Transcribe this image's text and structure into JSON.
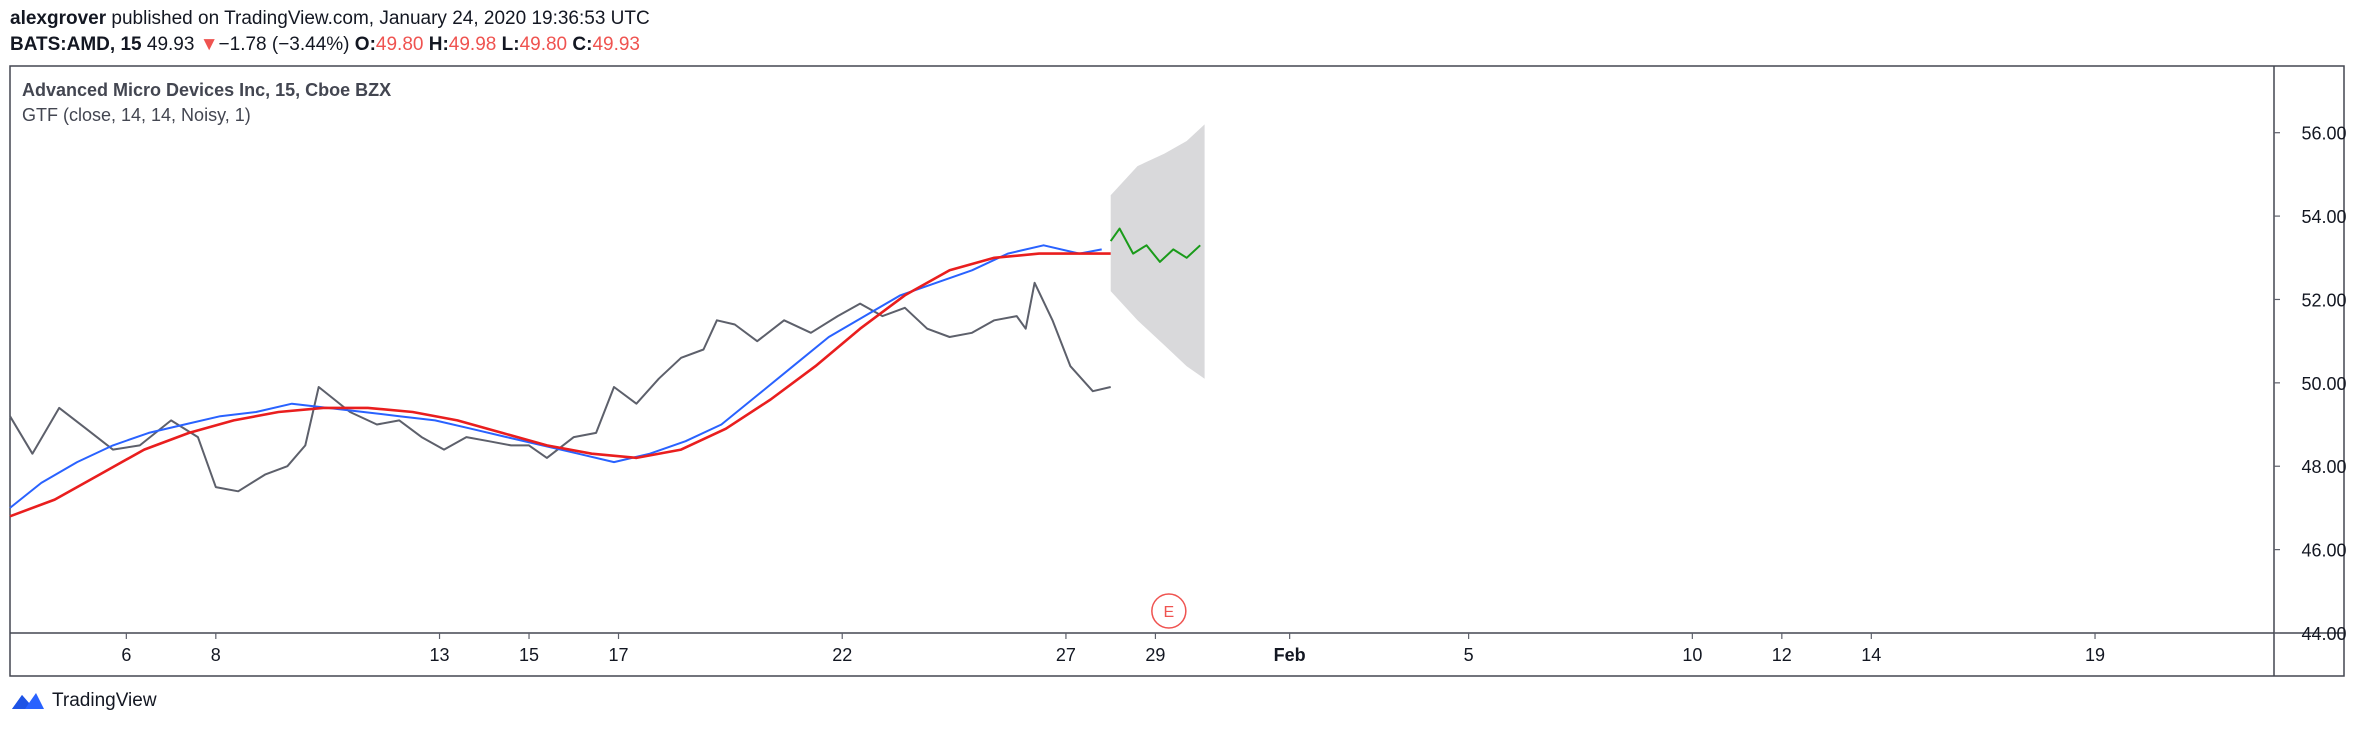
{
  "header": {
    "author": "alexgrover",
    "published_text": "published on TradingView.com, January 24, 2020 19:36:53 UTC",
    "symbol": "BATS:AMD, 15",
    "last_price": "49.93",
    "change": "−1.78 (−3.44%)",
    "o_label": "O:",
    "o_value": "49.80",
    "h_label": "H:",
    "h_value": "49.98",
    "l_label": "L:",
    "l_value": "49.80",
    "c_label": "C:",
    "c_value": "49.93"
  },
  "legend": {
    "title": "Advanced Micro Devices Inc, 15, Cboe BZX",
    "indicator": "GTF (close, 14, 14, Noisy, 1)"
  },
  "earnings_marker": "E",
  "footer": {
    "brand": "TradingView"
  },
  "colors": {
    "price": "#5d606b",
    "fast_line": "#2962ff",
    "slow_line": "#e91e1e",
    "forecast": "#1a9b1a",
    "band": "#d9d9db",
    "earnings": "#ef5350",
    "axis": "#5d606b"
  },
  "chart_data": {
    "type": "line",
    "title": "Advanced Micro Devices Inc, 15, Cboe BZX",
    "xlabel": "",
    "ylabel": "",
    "ylim": [
      44,
      57.6
    ],
    "y_ticks": [
      "56.00",
      "54.00",
      "52.00",
      "50.00",
      "48.00",
      "46.00",
      "44.00"
    ],
    "x_ticks": [
      "6",
      "8",
      "13",
      "15",
      "17",
      "22",
      "27",
      "29",
      "Feb",
      "5",
      "10",
      "12",
      "14",
      "19"
    ],
    "x_tick_days": [
      6,
      8,
      13,
      15,
      17,
      22,
      27,
      29,
      32,
      36,
      41,
      43,
      45,
      50
    ],
    "x_range_days": [
      3.4,
      54.0
    ],
    "series": [
      {
        "name": "",
        "role": "price",
        "points": [
          [
            3.4,
            49.2
          ],
          [
            3.9,
            48.3
          ],
          [
            4.5,
            49.4
          ],
          [
            5.1,
            48.9
          ],
          [
            5.7,
            48.4
          ],
          [
            6.3,
            48.5
          ],
          [
            7.0,
            49.1
          ],
          [
            7.6,
            48.7
          ],
          [
            8.0,
            47.5
          ],
          [
            8.5,
            47.4
          ],
          [
            9.1,
            47.8
          ],
          [
            9.6,
            48.0
          ],
          [
            10.0,
            48.5
          ],
          [
            10.3,
            49.9
          ],
          [
            11.0,
            49.3
          ],
          [
            11.6,
            49.0
          ],
          [
            12.1,
            49.1
          ],
          [
            12.6,
            48.7
          ],
          [
            13.1,
            48.4
          ],
          [
            13.6,
            48.7
          ],
          [
            14.1,
            48.6
          ],
          [
            14.6,
            48.5
          ],
          [
            15.0,
            48.5
          ],
          [
            15.4,
            48.2
          ],
          [
            16.0,
            48.7
          ],
          [
            16.5,
            48.8
          ],
          [
            16.9,
            49.9
          ],
          [
            17.4,
            49.5
          ],
          [
            17.9,
            50.1
          ],
          [
            18.4,
            50.6
          ],
          [
            18.9,
            50.8
          ],
          [
            19.2,
            51.5
          ],
          [
            19.6,
            51.4
          ],
          [
            20.1,
            51.0
          ],
          [
            20.7,
            51.5
          ],
          [
            21.3,
            51.2
          ],
          [
            21.9,
            51.6
          ],
          [
            22.4,
            51.9
          ],
          [
            22.9,
            51.6
          ],
          [
            23.4,
            51.8
          ],
          [
            23.9,
            51.3
          ],
          [
            24.4,
            51.1
          ],
          [
            24.9,
            51.2
          ],
          [
            25.4,
            51.5
          ],
          [
            25.9,
            51.6
          ],
          [
            26.1,
            51.3
          ],
          [
            26.3,
            52.4
          ],
          [
            26.7,
            51.5
          ],
          [
            27.1,
            50.4
          ],
          [
            27.6,
            49.8
          ],
          [
            28.0,
            49.9
          ]
        ]
      },
      {
        "name": "",
        "role": "fast",
        "points": [
          [
            3.4,
            47.0
          ],
          [
            4.1,
            47.6
          ],
          [
            4.9,
            48.1
          ],
          [
            5.7,
            48.5
          ],
          [
            6.5,
            48.8
          ],
          [
            7.3,
            49.0
          ],
          [
            8.1,
            49.2
          ],
          [
            8.9,
            49.3
          ],
          [
            9.7,
            49.5
          ],
          [
            10.5,
            49.4
          ],
          [
            11.3,
            49.3
          ],
          [
            12.1,
            49.2
          ],
          [
            12.9,
            49.1
          ],
          [
            13.7,
            48.9
          ],
          [
            14.5,
            48.7
          ],
          [
            15.3,
            48.5
          ],
          [
            16.1,
            48.3
          ],
          [
            16.9,
            48.1
          ],
          [
            17.7,
            48.3
          ],
          [
            18.5,
            48.6
          ],
          [
            19.3,
            49.0
          ],
          [
            20.1,
            49.7
          ],
          [
            20.9,
            50.4
          ],
          [
            21.7,
            51.1
          ],
          [
            22.5,
            51.6
          ],
          [
            23.3,
            52.1
          ],
          [
            24.1,
            52.4
          ],
          [
            24.9,
            52.7
          ],
          [
            25.7,
            53.1
          ],
          [
            26.5,
            53.3
          ],
          [
            27.3,
            53.1
          ],
          [
            27.8,
            53.2
          ]
        ]
      },
      {
        "name": "",
        "role": "slow",
        "points": [
          [
            3.4,
            46.8
          ],
          [
            4.4,
            47.2
          ],
          [
            5.4,
            47.8
          ],
          [
            6.4,
            48.4
          ],
          [
            7.4,
            48.8
          ],
          [
            8.4,
            49.1
          ],
          [
            9.4,
            49.3
          ],
          [
            10.4,
            49.4
          ],
          [
            11.4,
            49.4
          ],
          [
            12.4,
            49.3
          ],
          [
            13.4,
            49.1
          ],
          [
            14.4,
            48.8
          ],
          [
            15.4,
            48.5
          ],
          [
            16.4,
            48.3
          ],
          [
            17.4,
            48.2
          ],
          [
            18.4,
            48.4
          ],
          [
            19.4,
            48.9
          ],
          [
            20.4,
            49.6
          ],
          [
            21.4,
            50.4
          ],
          [
            22.4,
            51.3
          ],
          [
            23.4,
            52.1
          ],
          [
            24.4,
            52.7
          ],
          [
            25.4,
            53.0
          ],
          [
            26.4,
            53.1
          ],
          [
            27.3,
            53.1
          ],
          [
            28.0,
            53.1
          ]
        ]
      },
      {
        "name": "",
        "role": "forecast",
        "points": [
          [
            28.0,
            53.4
          ],
          [
            28.2,
            53.7
          ],
          [
            28.5,
            53.1
          ],
          [
            28.8,
            53.3
          ],
          [
            29.1,
            52.9
          ],
          [
            29.4,
            53.2
          ],
          [
            29.7,
            53.0
          ],
          [
            30.0,
            53.3
          ]
        ]
      }
    ],
    "band": {
      "upper": [
        [
          28.0,
          54.5
        ],
        [
          28.6,
          55.2
        ],
        [
          29.2,
          55.5
        ],
        [
          29.7,
          55.8
        ],
        [
          30.1,
          56.2
        ]
      ],
      "lower": [
        [
          28.0,
          52.2
        ],
        [
          28.6,
          51.5
        ],
        [
          29.2,
          50.9
        ],
        [
          29.7,
          50.4
        ],
        [
          30.1,
          50.1
        ]
      ]
    },
    "earnings_day": 29.3,
    "grid": false,
    "legend_position": "top-left"
  }
}
